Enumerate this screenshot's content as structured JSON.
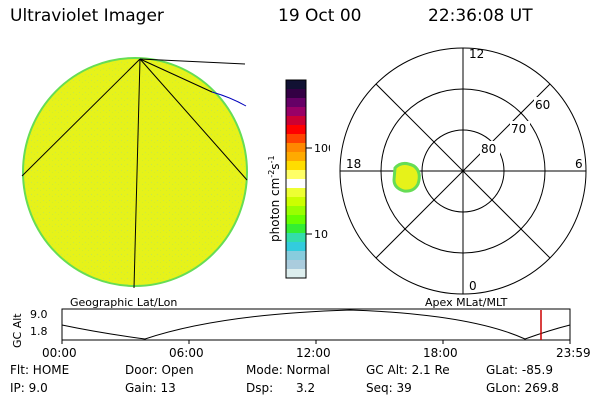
{
  "header": {
    "title": "Ultraviolet Imager",
    "date": "19 Oct 00",
    "time": "22:36:08 UT"
  },
  "colorbar": {
    "unit_label_main": "photon cm",
    "unit_label_sup1": "-2",
    "unit_label_mid": "s",
    "unit_label_sup2": "-1",
    "ticks": [
      "100",
      "10"
    ],
    "colors": [
      "#111133",
      "#330044",
      "#660066",
      "#990066",
      "#cc0033",
      "#ff0000",
      "#ff4400",
      "#ff8800",
      "#ffaa00",
      "#ffdd00",
      "#ffff66",
      "#ffffff",
      "#eeff33",
      "#ccff00",
      "#99ff00",
      "#66ff00",
      "#33ee33",
      "#33ddaa",
      "#33ccdd",
      "#88ccdd",
      "#aaccdd",
      "#ddeeee"
    ]
  },
  "polar": {
    "hour_labels": {
      "top": "12",
      "left": "18",
      "right": "6",
      "bottom": "0"
    },
    "lat_labels": [
      "60",
      "70",
      "80"
    ]
  },
  "plot_labels": {
    "geo": "Geographic Lat/Lon",
    "apex": "Apex MLat/MLT"
  },
  "alt_plot": {
    "ylabel": "GC Alt",
    "yticks": [
      "9.0",
      "1.8"
    ],
    "xticks": [
      "00:00",
      "06:00",
      "12:00",
      "18:00",
      "23:59"
    ]
  },
  "info": {
    "row1": {
      "flt": "Flt: HOME",
      "door": "Door: Open",
      "mode": "Mode: Normal",
      "gcalt": "GC Alt: 2.1 Re",
      "glat": "GLat: -85.9"
    },
    "row2": {
      "ip": "IP: 9.0",
      "gain": "Gain: 13",
      "dsp_label": "Dsp:",
      "dsp_value": "3.2",
      "seq": "Seq: 39",
      "glon": "GLon: 269.8"
    }
  },
  "accent_colors": {
    "earth_fill": "#e6f21a",
    "earth_edge": "#66dd55",
    "marker": "#cc0000",
    "track": "#0000bb"
  }
}
